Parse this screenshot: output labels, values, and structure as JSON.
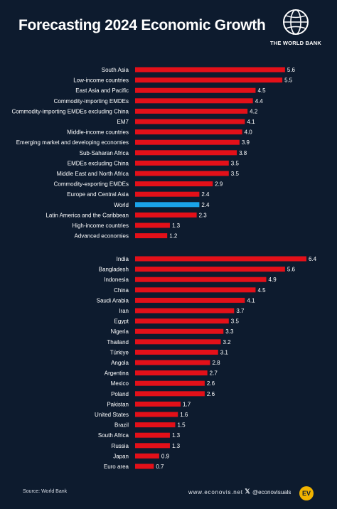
{
  "title": "Forecasting 2024 Economic Growth",
  "logo": {
    "text": "THE WORLD BANK",
    "icon": "globe-icon"
  },
  "footer": {
    "source": "Source: World Bank",
    "site": "www.econovis.net",
    "x_icon": "x-logo-icon",
    "handle": "@econovisuals",
    "badge": "EV"
  },
  "colors": {
    "background": "#0d1b2e",
    "bar": "#e31019",
    "highlight_bar": "#1aa3e8",
    "badge": "#f2b400"
  },
  "chart_data": {
    "type": "bar",
    "orientation": "horizontal",
    "xlim": [
      0,
      6.8
    ],
    "highlight": "World",
    "groups": [
      {
        "categories": [
          "South Asia",
          "Low-income countries",
          "East Asia and Pacific",
          "Commodity-importing EMDEs",
          "Commodity-importing EMDEs excluding China",
          "EM7",
          "Middle-income countries",
          "Emerging market and developing economies",
          "Sub-Saharan Africa",
          "EMDEs excluding China",
          "Middle East and North Africa",
          "Commodity-exporting EMDEs",
          "Europe and Central Asia",
          "World",
          "Latin America and the Caribbean",
          "High-income countries",
          "Advanced economies"
        ],
        "values": [
          5.6,
          5.5,
          4.5,
          4.4,
          4.2,
          4.1,
          4.0,
          3.9,
          3.8,
          3.5,
          3.5,
          2.9,
          2.4,
          2.4,
          2.3,
          1.3,
          1.2
        ]
      },
      {
        "categories": [
          "India",
          "Bangladesh",
          "Indonesia",
          "China",
          "Saudi Arabia",
          "Iran",
          "Egypt",
          "Nigeria",
          "Thailand",
          "Türkiye",
          "Angola",
          "Argentina",
          "Mexico",
          "Poland",
          "Pakistan",
          "United States",
          "Brazil",
          "South Africa",
          "Russia",
          "Japan",
          "Euro area"
        ],
        "values": [
          6.4,
          5.6,
          4.9,
          4.5,
          4.1,
          3.7,
          3.5,
          3.3,
          3.2,
          3.1,
          2.8,
          2.7,
          2.6,
          2.6,
          1.7,
          1.6,
          1.5,
          1.3,
          1.3,
          0.9,
          0.7
        ]
      }
    ]
  }
}
